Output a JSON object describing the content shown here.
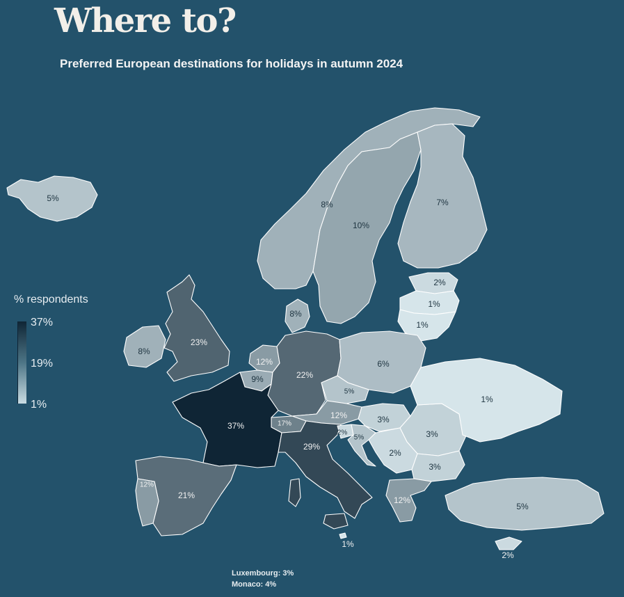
{
  "title": "Where to?",
  "subtitle": "Preferred European destinations for holidays in autumn 2024",
  "legend": {
    "title": "% respondents",
    "max_label": "37%",
    "mid_label": "19%",
    "min_label": "1%",
    "min_value": 1,
    "max_value": 37,
    "color_low": "#d6e5ea",
    "color_high": "#0f2535"
  },
  "colors": {
    "background": "#23526b",
    "border": "#ffffff",
    "text_dark": "#1e3440",
    "text_light": "#f2f2f2"
  },
  "countries": [
    {
      "id": "iceland",
      "value": 5,
      "label": "5%"
    },
    {
      "id": "norway",
      "value": 8,
      "label": "8%"
    },
    {
      "id": "sweden",
      "value": 10,
      "label": "10%"
    },
    {
      "id": "finland",
      "value": 7,
      "label": "7%"
    },
    {
      "id": "estonia",
      "value": 2,
      "label": "2%"
    },
    {
      "id": "latvia",
      "value": 1,
      "label": "1%"
    },
    {
      "id": "lithuania",
      "value": 1,
      "label": "1%"
    },
    {
      "id": "denmark",
      "value": 8,
      "label": "8%"
    },
    {
      "id": "ireland",
      "value": 8,
      "label": "8%"
    },
    {
      "id": "united-kingdom",
      "value": 23,
      "label": "23%"
    },
    {
      "id": "netherlands",
      "value": 12,
      "label": "12%"
    },
    {
      "id": "belgium",
      "value": 9,
      "label": "9%"
    },
    {
      "id": "germany",
      "value": 22,
      "label": "22%"
    },
    {
      "id": "poland",
      "value": 6,
      "label": "6%"
    },
    {
      "id": "czechia",
      "value": 5,
      "label": "5%"
    },
    {
      "id": "austria",
      "value": 12,
      "label": "12%"
    },
    {
      "id": "switzerland",
      "value": 17,
      "label": "17%"
    },
    {
      "id": "france",
      "value": 37,
      "label": "37%"
    },
    {
      "id": "italy",
      "value": 29,
      "label": "29%"
    },
    {
      "id": "slovenia",
      "value": 2,
      "label": "2%"
    },
    {
      "id": "croatia",
      "value": 5,
      "label": "5%"
    },
    {
      "id": "hungary",
      "value": 3,
      "label": "3%"
    },
    {
      "id": "romania",
      "value": 3,
      "label": "3%"
    },
    {
      "id": "serbia",
      "value": 2,
      "label": "2%"
    },
    {
      "id": "bulgaria",
      "value": 3,
      "label": "3%"
    },
    {
      "id": "greece",
      "value": 12,
      "label": "12%"
    },
    {
      "id": "turkey",
      "value": 5,
      "label": "5%"
    },
    {
      "id": "ukraine",
      "value": 1,
      "label": "1%"
    },
    {
      "id": "spain",
      "value": 21,
      "label": "21%"
    },
    {
      "id": "portugal",
      "value": 12,
      "label": "12%"
    },
    {
      "id": "malta",
      "value": 1,
      "label": "1%"
    },
    {
      "id": "cyprus",
      "value": 2,
      "label": "2%"
    }
  ],
  "footnotes": {
    "luxembourg": "Luxembourg: 3%",
    "monaco": "Monaco: 4%"
  }
}
